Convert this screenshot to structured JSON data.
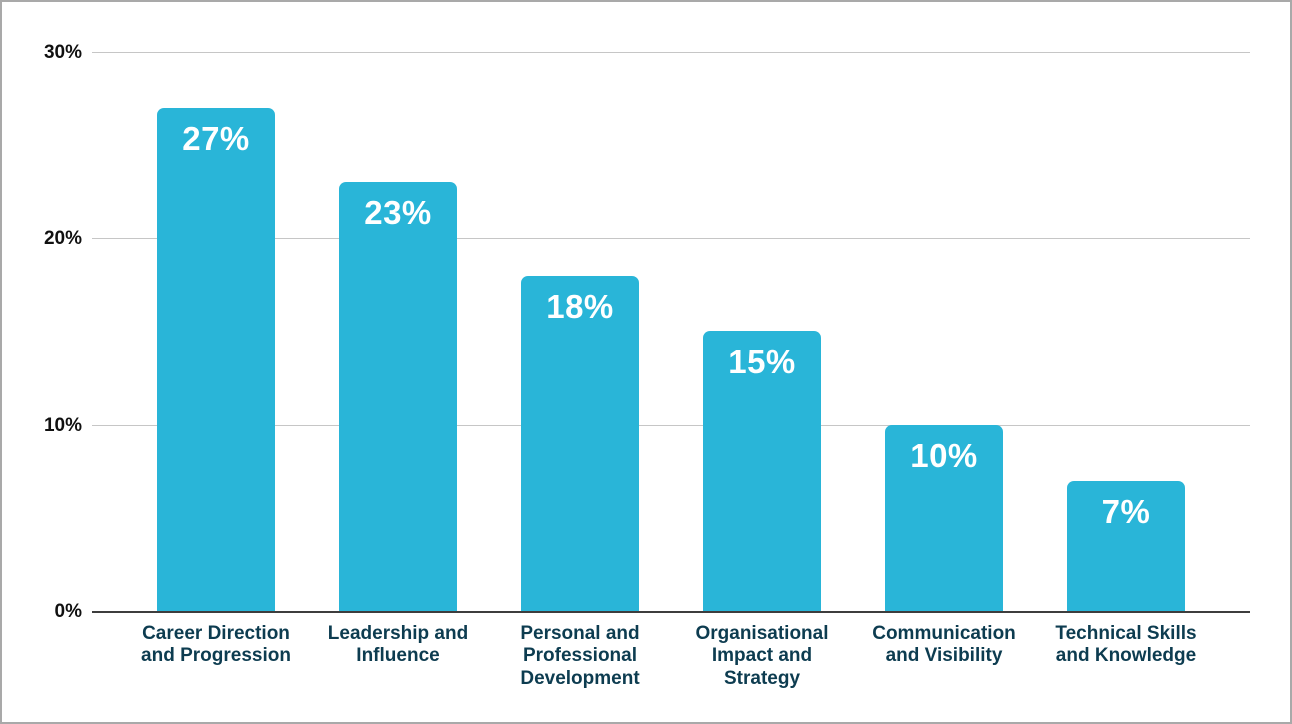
{
  "chart_data": {
    "type": "bar",
    "categories": [
      "Career Direction\nand Progression",
      "Leadership and\nInfluence",
      "Personal and\nProfessional\nDevelopment",
      "Organisational\nImpact and\nStrategy",
      "Communication\nand Visibility",
      "Technical Skills\nand Knowledge"
    ],
    "values": [
      27,
      23,
      18,
      15,
      10,
      7
    ],
    "value_labels": [
      "27%",
      "23%",
      "18%",
      "15%",
      "10%",
      "7%"
    ],
    "title": "",
    "xlabel": "",
    "ylabel": "",
    "ylim": [
      0,
      30
    ],
    "y_ticks": [
      {
        "label": "30%",
        "value": 30
      },
      {
        "label": "20%",
        "value": 20
      },
      {
        "label": "10%",
        "value": 10
      },
      {
        "label": "0%",
        "value": 0
      }
    ],
    "grid": "horizontal",
    "legend": "none",
    "colors": {
      "bar": "#29b5d8",
      "value_label_text": "#ffffff",
      "category_label_text": "#0d3c50",
      "ytick_text": "#111111",
      "gridline": "#c6c6c6",
      "axis_line": "#3d3d3d",
      "frame_border": "#a9a9a9",
      "background": "#ffffff"
    }
  }
}
